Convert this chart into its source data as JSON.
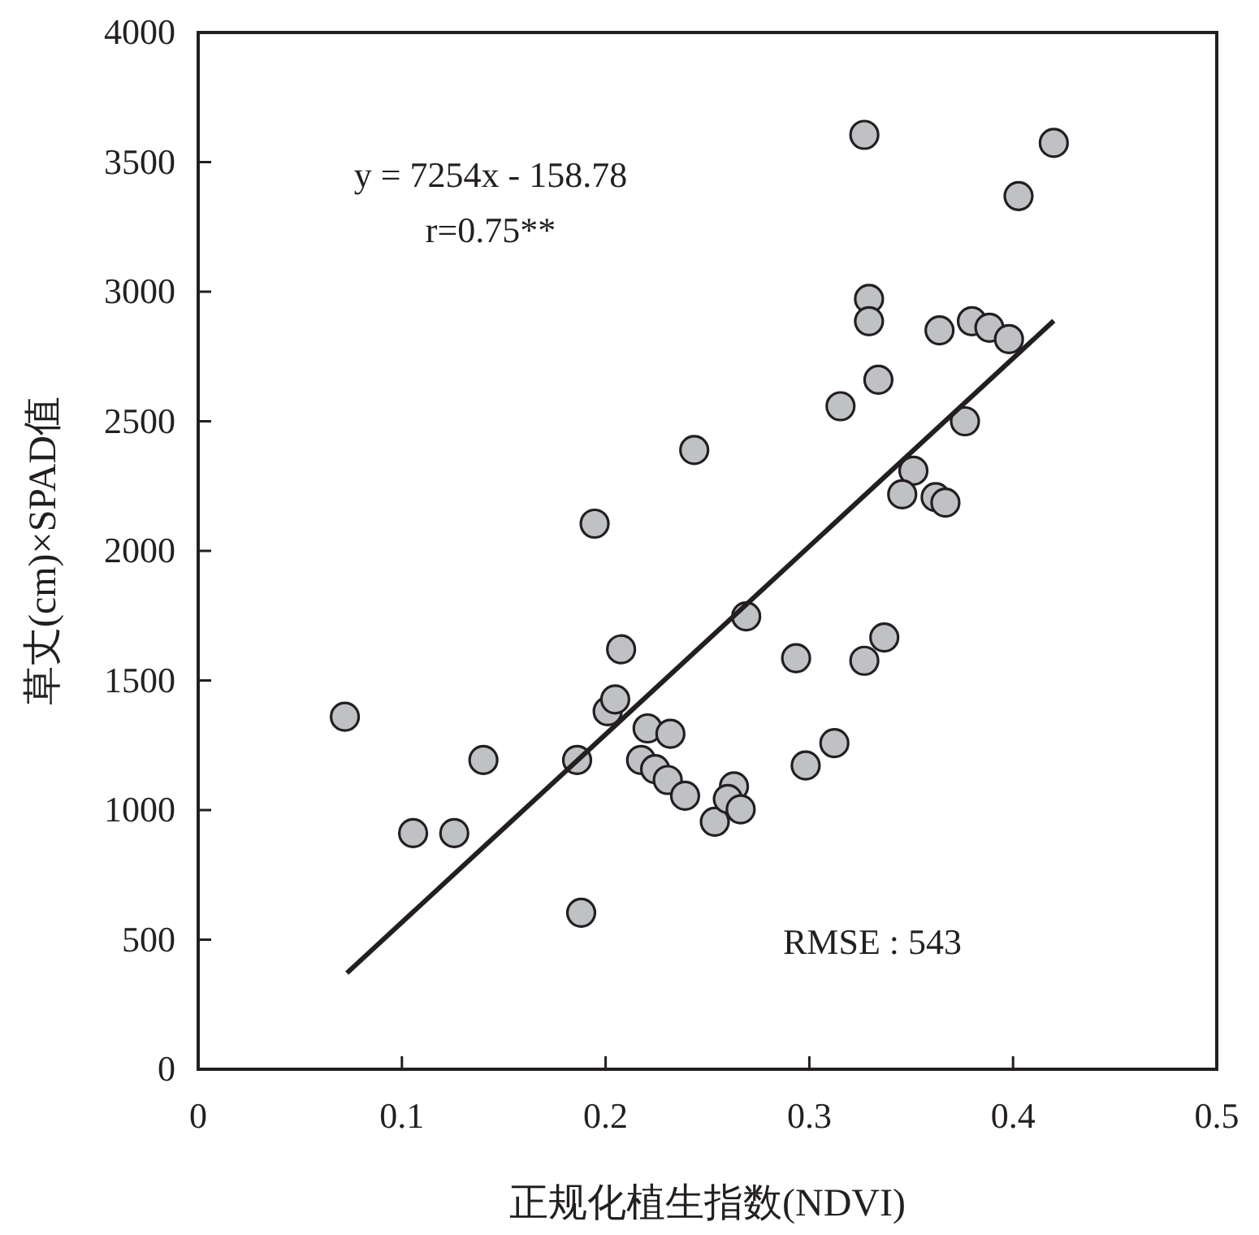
{
  "chart_data": {
    "type": "scatter",
    "xlabel": "正规化植生指数(NDVI)",
    "ylabel": "草丈(cm)×SPAD值",
    "xlim": [
      0,
      0.5
    ],
    "xticks": [
      0,
      {
        "value": 0.1,
        "label": "0.1"
      },
      {
        "value": 0.2,
        "label": "0.2"
      },
      {
        "value": 0.3,
        "label": "0.3"
      },
      {
        "value": 0.4,
        "label": "0.4"
      },
      {
        "value": 0.5,
        "label": "0.5"
      }
    ],
    "ylim": [
      0,
      4000
    ],
    "yticks": [
      0,
      500,
      1000,
      1500,
      2000,
      2500,
      3000,
      3500,
      4000
    ],
    "grid": false,
    "marker": "circle",
    "annotations": [
      "y = 7254x - 158.78",
      "r=0.75**",
      "RMSE : 543"
    ],
    "series": [
      {
        "color": "#c0c1c5",
        "x": [
          0.072,
          0.1055,
          0.1257,
          0.14,
          0.188,
          0.186,
          0.2076,
          0.201,
          0.2047,
          0.2206,
          0.2318,
          0.2174,
          0.2243,
          0.2305,
          0.239,
          0.2536,
          0.269,
          0.2935,
          0.327,
          0.3368,
          0.2982,
          0.3123,
          0.263,
          0.26,
          0.2663,
          0.327,
          0.42,
          0.4027,
          0.3293,
          0.3293,
          0.3639,
          0.3798,
          0.3884,
          0.398,
          0.3339,
          0.3153,
          0.2435,
          0.3764,
          0.3511,
          0.3456,
          0.362,
          0.3668,
          0.1946
        ],
        "values": [
          1360,
          911,
          911,
          1193,
          604,
          1193,
          1620,
          1381,
          1427,
          1315,
          1294,
          1193,
          1158,
          1116,
          1055,
          955,
          1747,
          1586,
          1576,
          1666,
          1172,
          1258,
          1091,
          1043,
          1003,
          3605,
          3574,
          3369,
          2972,
          2886,
          2851,
          2886,
          2861,
          2817,
          2660,
          2558,
          2389,
          2500,
          2309,
          2218,
          2207,
          2186,
          2105
        ]
      },
      {
        "type": "line",
        "color": "#231f20",
        "line_style": "solid",
        "marker": "none",
        "x": [
          0.073,
          0.42
        ],
        "values": [
          371,
          2888
        ]
      }
    ]
  }
}
